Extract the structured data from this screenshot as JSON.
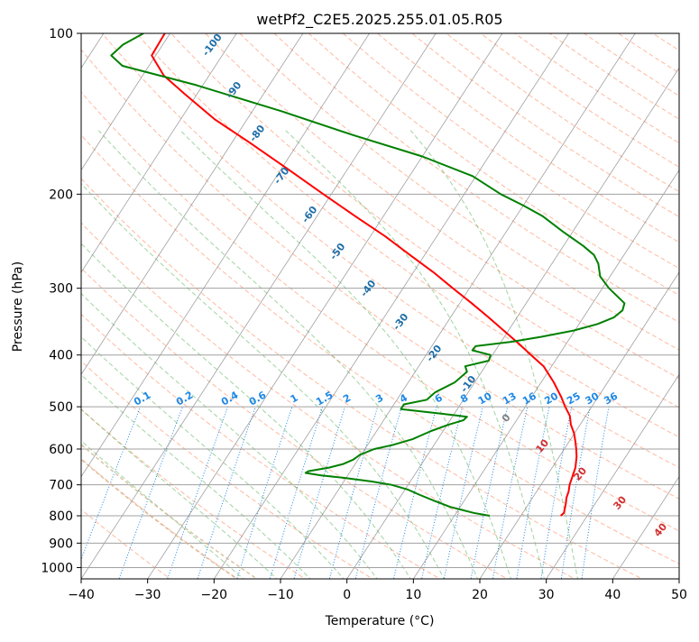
{
  "chart_data": {
    "type": "line",
    "title": "wetPf2_C2E5.2025.255.01.05.R05",
    "xlabel": "Temperature (°C)",
    "ylabel": "Pressure (hPa)",
    "xlim": [
      -40,
      50
    ],
    "ylim": [
      1050,
      100
    ],
    "y_scale": "log",
    "skew": true,
    "x_ticks": [
      -40,
      -30,
      -20,
      -10,
      0,
      10,
      20,
      30,
      40,
      50
    ],
    "y_ticks": [
      100,
      200,
      300,
      400,
      500,
      600,
      700,
      800,
      900,
      1000
    ],
    "grid": true,
    "series": [
      {
        "color": "#ff0000",
        "points": [
          [
            800,
            26.0
          ],
          [
            790,
            26.2
          ],
          [
            780,
            26.0
          ],
          [
            760,
            25.6
          ],
          [
            740,
            25.1
          ],
          [
            720,
            24.8
          ],
          [
            700,
            24.3
          ],
          [
            680,
            24.0
          ],
          [
            650,
            23.5
          ],
          [
            620,
            22.6
          ],
          [
            600,
            21.8
          ],
          [
            580,
            20.9
          ],
          [
            560,
            19.9
          ],
          [
            540,
            18.6
          ],
          [
            520,
            17.6
          ],
          [
            500,
            16.0
          ],
          [
            480,
            14.5
          ],
          [
            450,
            11.9
          ],
          [
            420,
            8.8
          ],
          [
            400,
            5.8
          ],
          [
            380,
            2.7
          ],
          [
            360,
            -0.7
          ],
          [
            340,
            -4.3
          ],
          [
            320,
            -8.2
          ],
          [
            300,
            -12.5
          ],
          [
            280,
            -17.0
          ],
          [
            260,
            -22.2
          ],
          [
            240,
            -27.7
          ],
          [
            220,
            -34.2
          ],
          [
            200,
            -41.2
          ],
          [
            180,
            -48.8
          ],
          [
            160,
            -57.4
          ],
          [
            145,
            -64.8
          ],
          [
            130,
            -71.8
          ],
          [
            120,
            -76.8
          ],
          [
            110,
            -80.6
          ],
          [
            100,
            -80.8
          ]
        ]
      },
      {
        "color": "#008000",
        "points": [
          [
            800,
            15.3
          ],
          [
            790,
            12.6
          ],
          [
            770,
            8.5
          ],
          [
            750,
            5.5
          ],
          [
            730,
            2.6
          ],
          [
            715,
            0.5
          ],
          [
            700,
            -2.5
          ],
          [
            690,
            -5.8
          ],
          [
            680,
            -10.0
          ],
          [
            672,
            -14.0
          ],
          [
            665,
            -16.6
          ],
          [
            660,
            -16.3
          ],
          [
            650,
            -13.6
          ],
          [
            640,
            -11.8
          ],
          [
            628,
            -10.7
          ],
          [
            615,
            -10.2
          ],
          [
            600,
            -8.6
          ],
          [
            590,
            -6.3
          ],
          [
            575,
            -3.8
          ],
          [
            565,
            -2.8
          ],
          [
            555,
            -1.8
          ],
          [
            540,
            0.2
          ],
          [
            530,
            2.0
          ],
          [
            522,
            2.2
          ],
          [
            515,
            -2.0
          ],
          [
            505,
            -8.5
          ],
          [
            495,
            -8.5
          ],
          [
            485,
            -5.5
          ],
          [
            470,
            -5.0
          ],
          [
            450,
            -3.0
          ],
          [
            430,
            -2.2
          ],
          [
            420,
            -3.0
          ],
          [
            410,
            0.0
          ],
          [
            400,
            -0.3
          ],
          [
            392,
            -3.5
          ],
          [
            385,
            -3.4
          ],
          [
            378,
            1.5
          ],
          [
            370,
            5.5
          ],
          [
            360,
            9.8
          ],
          [
            350,
            12.8
          ],
          [
            340,
            14.6
          ],
          [
            330,
            15.2
          ],
          [
            320,
            14.8
          ],
          [
            300,
            11.0
          ],
          [
            285,
            8.5
          ],
          [
            270,
            7.0
          ],
          [
            260,
            5.5
          ],
          [
            250,
            3.0
          ],
          [
            235,
            -1.5
          ],
          [
            220,
            -6.0
          ],
          [
            210,
            -10.0
          ],
          [
            200,
            -14.5
          ],
          [
            185,
            -20.5
          ],
          [
            170,
            -30.0
          ],
          [
            155,
            -42.5
          ],
          [
            140,
            -55.5
          ],
          [
            125,
            -71.0
          ],
          [
            115,
            -84.0
          ],
          [
            110,
            -86.7
          ],
          [
            105,
            -86.0
          ],
          [
            100,
            -84.0
          ]
        ]
      }
    ],
    "dry_adiabat_labels": [
      -100,
      -90,
      -80,
      -70,
      -60,
      -50,
      -40,
      -30,
      -20,
      -10
    ],
    "mixing_ratio_labels": [
      "0.1",
      "0.2",
      "0.4",
      "0.6",
      "1",
      "1.5",
      "2",
      "3",
      "4",
      "6",
      "8",
      "10",
      "13",
      "16",
      "20",
      "25",
      "30",
      "36"
    ],
    "moist_adiabat_labels": [
      "0",
      "10",
      "20",
      "30",
      "40"
    ],
    "colors": {
      "dry_adiabats": "#ff7f50",
      "moist_adiabats": "#2ca02c",
      "mixing_ratio": "#1e88e5",
      "isotherms": "#808080",
      "isobars": "#a0a0a0",
      "dendritic": "#d2b48c"
    }
  }
}
